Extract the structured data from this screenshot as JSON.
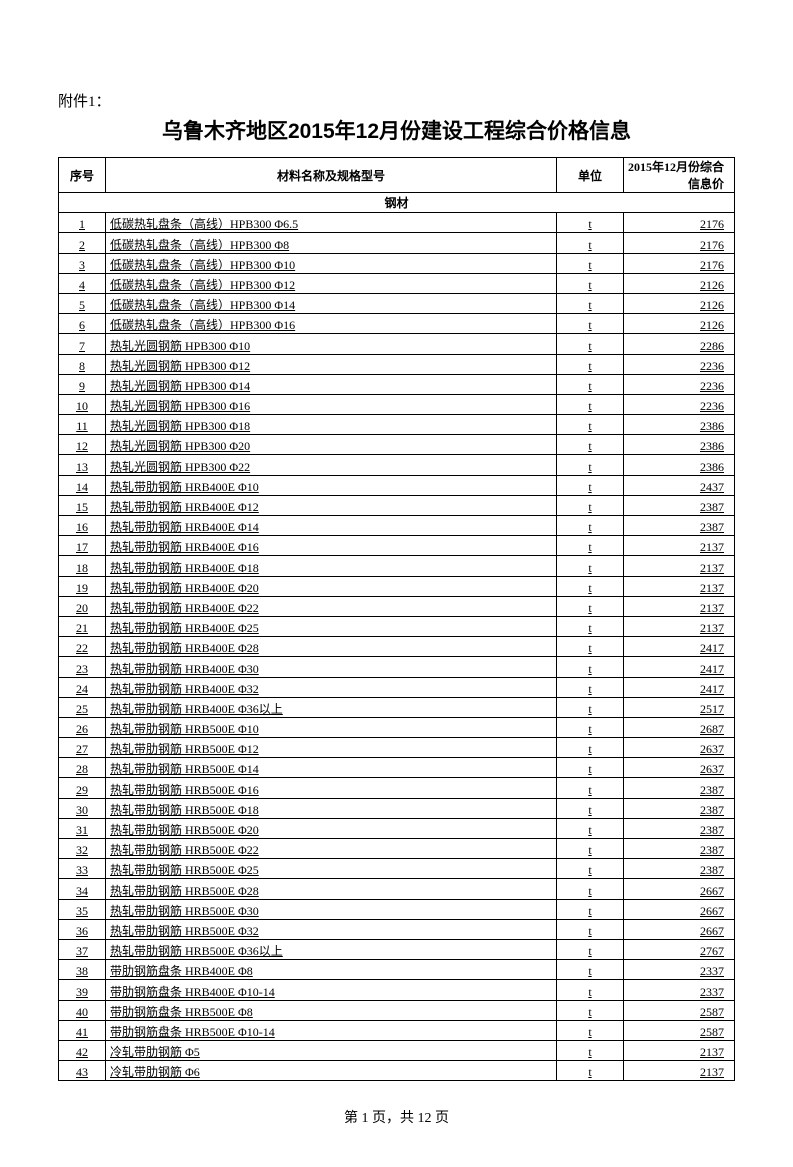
{
  "attachment_label": "附件1：",
  "title": "乌鲁木齐地区2015年12月份建设工程综合价格信息",
  "columns": {
    "seq": "序号",
    "name": "材料名称及规格型号",
    "unit": "单位",
    "price": "2015年12月份综合信息价"
  },
  "section_header": "钢材",
  "rows": [
    {
      "seq": "1",
      "name": "低碳热轧盘条（高线）HPB300 Φ6.5",
      "unit": "t",
      "price": "2176"
    },
    {
      "seq": "2",
      "name": "低碳热轧盘条（高线）HPB300 Φ8",
      "unit": "t",
      "price": "2176"
    },
    {
      "seq": "3",
      "name": "低碳热轧盘条（高线）HPB300 Φ10",
      "unit": "t",
      "price": "2176"
    },
    {
      "seq": "4",
      "name": "低碳热轧盘条（高线）HPB300 Φ12",
      "unit": "t",
      "price": "2126"
    },
    {
      "seq": "5",
      "name": "低碳热轧盘条（高线）HPB300 Φ14",
      "unit": "t",
      "price": "2126"
    },
    {
      "seq": "6",
      "name": "低碳热轧盘条（高线）HPB300 Φ16",
      "unit": "t",
      "price": "2126"
    },
    {
      "seq": "7",
      "name": "热轧光圆钢筋 HPB300 Φ10",
      "unit": "t",
      "price": "2286"
    },
    {
      "seq": "8",
      "name": "热轧光圆钢筋 HPB300 Φ12",
      "unit": "t",
      "price": "2236"
    },
    {
      "seq": "9",
      "name": "热轧光圆钢筋 HPB300 Φ14",
      "unit": "t",
      "price": "2236"
    },
    {
      "seq": "10",
      "name": "热轧光圆钢筋 HPB300 Φ16",
      "unit": "t",
      "price": "2236"
    },
    {
      "seq": "11",
      "name": "热轧光圆钢筋 HPB300 Φ18",
      "unit": "t",
      "price": "2386"
    },
    {
      "seq": "12",
      "name": "热轧光圆钢筋 HPB300 Φ20",
      "unit": "t",
      "price": "2386"
    },
    {
      "seq": "13",
      "name": "热轧光圆钢筋 HPB300 Φ22",
      "unit": "t",
      "price": "2386"
    },
    {
      "seq": "14",
      "name": "热轧带肋钢筋 HRB400E Φ10",
      "unit": "t",
      "price": "2437"
    },
    {
      "seq": "15",
      "name": "热轧带肋钢筋 HRB400E Φ12",
      "unit": "t",
      "price": "2387"
    },
    {
      "seq": "16",
      "name": "热轧带肋钢筋 HRB400E Φ14",
      "unit": "t",
      "price": "2387"
    },
    {
      "seq": "17",
      "name": "热轧带肋钢筋 HRB400E Φ16",
      "unit": "t",
      "price": "2137"
    },
    {
      "seq": "18",
      "name": "热轧带肋钢筋 HRB400E Φ18",
      "unit": "t",
      "price": "2137"
    },
    {
      "seq": "19",
      "name": "热轧带肋钢筋 HRB400E Φ20",
      "unit": "t",
      "price": "2137"
    },
    {
      "seq": "20",
      "name": "热轧带肋钢筋 HRB400E Φ22",
      "unit": "t",
      "price": "2137"
    },
    {
      "seq": "21",
      "name": "热轧带肋钢筋 HRB400E Φ25",
      "unit": "t",
      "price": "2137"
    },
    {
      "seq": "22",
      "name": "热轧带肋钢筋 HRB400E Φ28",
      "unit": "t",
      "price": "2417"
    },
    {
      "seq": "23",
      "name": "热轧带肋钢筋 HRB400E Φ30",
      "unit": "t",
      "price": "2417"
    },
    {
      "seq": "24",
      "name": "热轧带肋钢筋 HRB400E Φ32",
      "unit": "t",
      "price": "2417"
    },
    {
      "seq": "25",
      "name": "热轧带肋钢筋 HRB400E Φ36以上",
      "unit": "t",
      "price": "2517"
    },
    {
      "seq": "26",
      "name": "热轧带肋钢筋 HRB500E Φ10",
      "unit": "t",
      "price": "2687"
    },
    {
      "seq": "27",
      "name": "热轧带肋钢筋 HRB500E Φ12",
      "unit": "t",
      "price": "2637"
    },
    {
      "seq": "28",
      "name": "热轧带肋钢筋 HRB500E Φ14",
      "unit": "t",
      "price": "2637"
    },
    {
      "seq": "29",
      "name": "热轧带肋钢筋 HRB500E Φ16",
      "unit": "t",
      "price": "2387"
    },
    {
      "seq": "30",
      "name": "热轧带肋钢筋 HRB500E Φ18",
      "unit": "t",
      "price": "2387"
    },
    {
      "seq": "31",
      "name": "热轧带肋钢筋 HRB500E Φ20",
      "unit": "t",
      "price": "2387"
    },
    {
      "seq": "32",
      "name": "热轧带肋钢筋 HRB500E Φ22",
      "unit": "t",
      "price": "2387"
    },
    {
      "seq": "33",
      "name": "热轧带肋钢筋 HRB500E Φ25",
      "unit": "t",
      "price": "2387"
    },
    {
      "seq": "34",
      "name": "热轧带肋钢筋 HRB500E Φ28",
      "unit": "t",
      "price": "2667"
    },
    {
      "seq": "35",
      "name": "热轧带肋钢筋 HRB500E Φ30",
      "unit": "t",
      "price": "2667"
    },
    {
      "seq": "36",
      "name": "热轧带肋钢筋 HRB500E Φ32",
      "unit": "t",
      "price": "2667"
    },
    {
      "seq": "37",
      "name": "热轧带肋钢筋 HRB500E Φ36以上",
      "unit": "t",
      "price": "2767"
    },
    {
      "seq": "38",
      "name": "带肋钢筋盘条 HRB400E Φ8",
      "unit": "t",
      "price": "2337"
    },
    {
      "seq": "39",
      "name": "带肋钢筋盘条 HRB400E Φ10-14",
      "unit": "t",
      "price": "2337"
    },
    {
      "seq": "40",
      "name": "带肋钢筋盘条 HRB500E Φ8",
      "unit": "t",
      "price": "2587"
    },
    {
      "seq": "41",
      "name": "带肋钢筋盘条 HRB500E Φ10-14",
      "unit": "t",
      "price": "2587"
    },
    {
      "seq": "42",
      "name": "冷轧带肋钢筋 Φ5",
      "unit": "t",
      "price": "2137"
    },
    {
      "seq": "43",
      "name": "冷轧带肋钢筋 Φ6",
      "unit": "t",
      "price": "2137"
    }
  ],
  "footer": "第 1 页，共 12 页"
}
